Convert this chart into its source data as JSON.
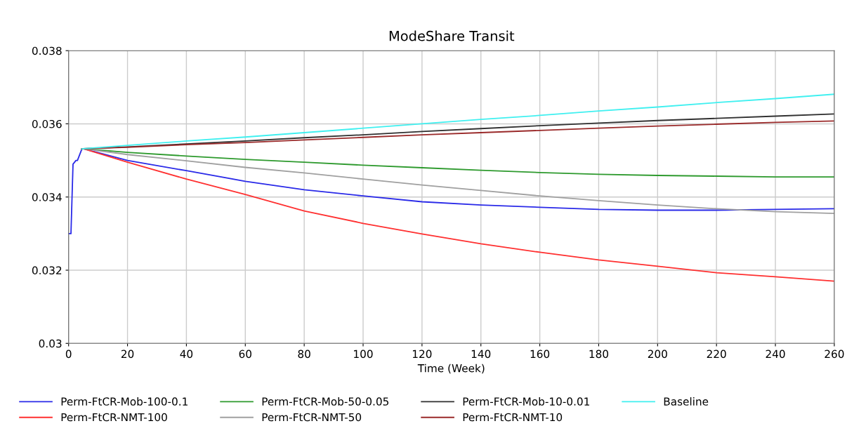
{
  "chart_data": {
    "type": "line",
    "title": "ModeShare Transit",
    "xlabel": "Time (Week)",
    "x": [
      0,
      0.8,
      1.5,
      2.5,
      3,
      4.5,
      5,
      20,
      40,
      60,
      80,
      100,
      120,
      140,
      160,
      180,
      200,
      220,
      240,
      260
    ],
    "series": [
      {
        "name": "Perm-FtCR-Mob-100-0.1",
        "color": "#2a2ae8",
        "values": [
          0.033,
          0.033,
          0.0349,
          0.035,
          0.035,
          0.03531,
          0.03532,
          0.035,
          0.03472,
          0.03443,
          0.0342,
          0.03403,
          0.03387,
          0.03378,
          0.03372,
          0.03366,
          0.03364,
          0.03364,
          0.03366,
          0.03368
        ]
      },
      {
        "name": "Perm-FtCR-NMT-100",
        "color": "#ff3030",
        "values": [
          null,
          null,
          null,
          null,
          null,
          0.03531,
          0.03532,
          0.03495,
          0.03449,
          0.03407,
          0.03362,
          0.03328,
          0.03299,
          0.03272,
          0.03249,
          0.03228,
          0.03211,
          0.03193,
          0.03182,
          0.0317
        ]
      },
      {
        "name": "Perm-FtCR-Mob-50-0.05",
        "color": "#2e9a2e",
        "values": [
          null,
          null,
          null,
          null,
          null,
          0.03531,
          0.03532,
          0.03522,
          0.03512,
          0.03503,
          0.03495,
          0.03487,
          0.0348,
          0.03473,
          0.03467,
          0.03462,
          0.03459,
          0.03457,
          0.03455,
          0.03455
        ]
      },
      {
        "name": "Perm-FtCR-NMT-50",
        "color": "#a0a0a0",
        "values": [
          null,
          null,
          null,
          null,
          null,
          0.03531,
          0.03532,
          0.03516,
          0.03499,
          0.03481,
          0.03466,
          0.03449,
          0.03433,
          0.03418,
          0.03403,
          0.0339,
          0.03378,
          0.03368,
          0.0336,
          0.03355
        ]
      },
      {
        "name": "Perm-FtCR-Mob-10-0.01",
        "color": "#303030",
        "values": [
          null,
          null,
          null,
          null,
          null,
          0.03531,
          0.03532,
          0.03537,
          0.03545,
          0.03553,
          0.03562,
          0.0357,
          0.03579,
          0.03587,
          0.03595,
          0.03602,
          0.03609,
          0.03615,
          0.03621,
          0.03627
        ]
      },
      {
        "name": "Perm-FtCR-NMT-10",
        "color": "#9a2a2a",
        "values": [
          null,
          null,
          null,
          null,
          null,
          0.03531,
          0.03532,
          0.03536,
          0.03543,
          0.03549,
          0.03556,
          0.03563,
          0.0357,
          0.03576,
          0.03582,
          0.03588,
          0.03594,
          0.03599,
          0.03604,
          0.03608
        ]
      },
      {
        "name": "Baseline",
        "color": "#40f0f0",
        "values": [
          null,
          null,
          null,
          null,
          null,
          0.03531,
          0.03532,
          0.03541,
          0.03553,
          0.03564,
          0.03576,
          0.03588,
          0.036,
          0.03612,
          0.03623,
          0.03635,
          0.03646,
          0.03658,
          0.03669,
          0.03681
        ]
      }
    ],
    "xlim": [
      0,
      260
    ],
    "xticks": [
      0,
      20,
      40,
      60,
      80,
      100,
      120,
      140,
      160,
      180,
      200,
      220,
      240,
      260
    ],
    "ylim": [
      0.03,
      0.038
    ],
    "yticks": [
      0.03,
      0.032,
      0.034,
      0.036,
      0.038
    ],
    "grid": true,
    "legend": "bottom",
    "marker": "none",
    "line_style": "solid"
  }
}
